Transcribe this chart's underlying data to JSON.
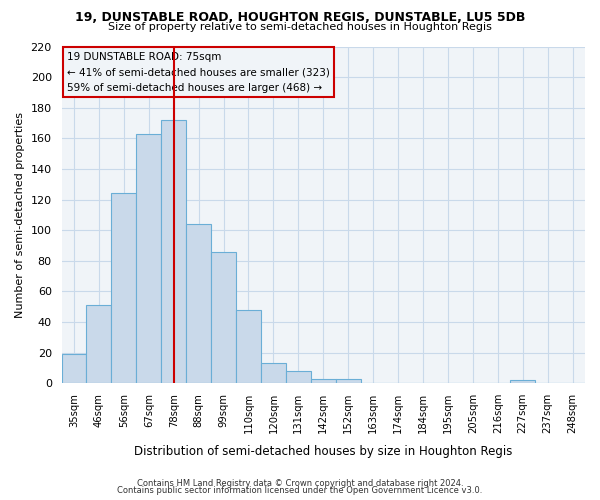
{
  "title_line1": "19, DUNSTABLE ROAD, HOUGHTON REGIS, DUNSTABLE, LU5 5DB",
  "title_line2": "Size of property relative to semi-detached houses in Houghton Regis",
  "xlabel": "Distribution of semi-detached houses by size in Houghton Regis",
  "ylabel": "Number of semi-detached properties",
  "bar_labels": [
    "35sqm",
    "46sqm",
    "56sqm",
    "67sqm",
    "78sqm",
    "88sqm",
    "99sqm",
    "110sqm",
    "120sqm",
    "131sqm",
    "142sqm",
    "152sqm",
    "163sqm",
    "174sqm",
    "184sqm",
    "195sqm",
    "205sqm",
    "216sqm",
    "227sqm",
    "237sqm",
    "248sqm"
  ],
  "bar_heights": [
    19,
    51,
    124,
    163,
    172,
    104,
    86,
    48,
    13,
    8,
    3,
    3,
    0,
    0,
    0,
    0,
    0,
    0,
    2,
    0,
    0
  ],
  "bar_color": "#c9d9ea",
  "bar_edge_color": "#6aaed6",
  "grid_color": "#c9d9ea",
  "vline_x_index": 4,
  "vline_color": "#cc0000",
  "annotation_title": "19 DUNSTABLE ROAD: 75sqm",
  "annotation_line1": "← 41% of semi-detached houses are smaller (323)",
  "annotation_line2": "59% of semi-detached houses are larger (468) →",
  "annotation_box_color": "#cc0000",
  "ylim": [
    0,
    220
  ],
  "yticks": [
    0,
    20,
    40,
    60,
    80,
    100,
    120,
    140,
    160,
    180,
    200,
    220
  ],
  "footnote1": "Contains HM Land Registry data © Crown copyright and database right 2024.",
  "footnote2": "Contains public sector information licensed under the Open Government Licence v3.0.",
  "bg_color": "#ffffff",
  "plot_bg_color": "#f0f4f8"
}
